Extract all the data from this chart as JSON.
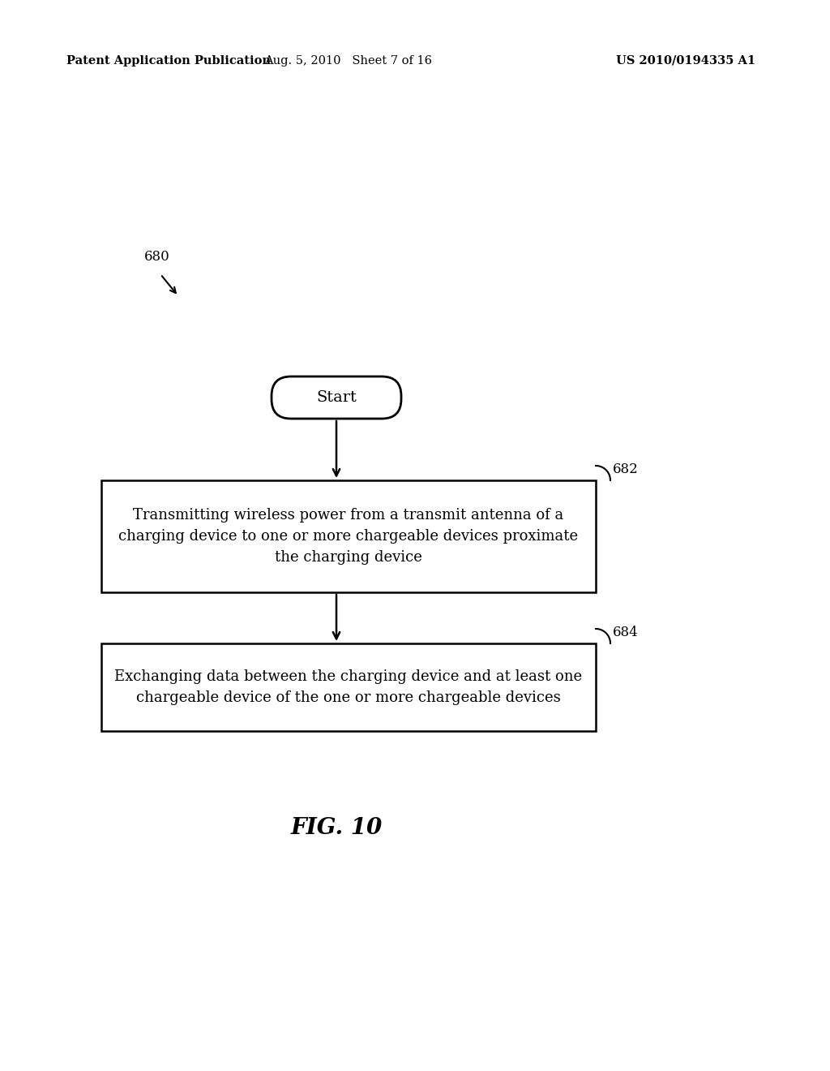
{
  "background_color": "#ffffff",
  "header_left": "Patent Application Publication",
  "header_mid": "Aug. 5, 2010   Sheet 7 of 16",
  "header_right": "US 2010/0194335 A1",
  "header_fontsize": 10.5,
  "fig_label": "FIG. 10",
  "fig_label_fontsize": 20,
  "start_label": "Start",
  "box1_text": "Transmitting wireless power from a transmit antenna of a\ncharging device to one or more chargeable devices proximate\nthe charging device",
  "box2_text": "Exchanging data between the charging device and at least one\nchargeable device of the one or more chargeable devices",
  "label_680": "680",
  "label_682": "682",
  "label_684": "684",
  "text_fontsize": 13,
  "label_fontsize": 12
}
